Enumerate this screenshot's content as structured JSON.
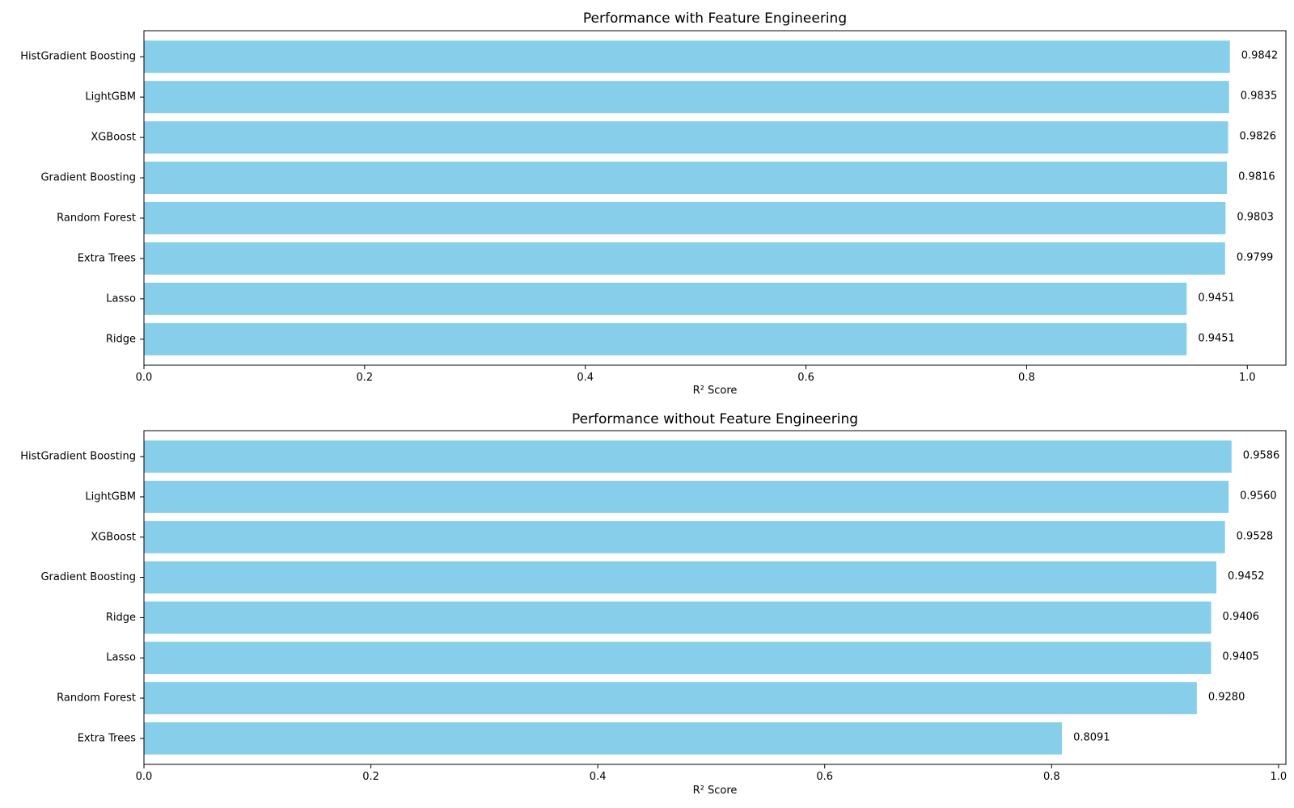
{
  "chart_data": [
    {
      "type": "bar",
      "orientation": "horizontal",
      "title": "Performance with Feature Engineering",
      "xlabel": "R² Score",
      "ylabel": "",
      "xlim": [
        0,
        1.035
      ],
      "xticks": [
        "0.0",
        "0.2",
        "0.4",
        "0.6",
        "0.8",
        "1.0"
      ],
      "xtick_values": [
        0,
        0.2,
        0.4,
        0.6,
        0.8,
        1.0
      ],
      "categories": [
        "HistGradient Boosting",
        "LightGBM",
        "XGBoost",
        "Gradient Boosting",
        "Random Forest",
        "Extra Trees",
        "Lasso",
        "Ridge"
      ],
      "values": [
        0.9842,
        0.9835,
        0.9826,
        0.9816,
        0.9803,
        0.9799,
        0.9451,
        0.9451
      ],
      "value_labels": [
        "0.9842",
        "0.9835",
        "0.9826",
        "0.9816",
        "0.9803",
        "0.9799",
        "0.9451",
        "0.9451"
      ],
      "grid": false,
      "bar_color": "#87ceeb"
    },
    {
      "type": "bar",
      "orientation": "horizontal",
      "title": "Performance without Feature Engineering",
      "xlabel": "R² Score",
      "ylabel": "",
      "xlim": [
        0,
        1.0065
      ],
      "xticks": [
        "0.0",
        "0.2",
        "0.4",
        "0.6",
        "0.8",
        "1.0"
      ],
      "xtick_values": [
        0,
        0.2,
        0.4,
        0.6,
        0.8,
        1.0
      ],
      "categories": [
        "HistGradient Boosting",
        "LightGBM",
        "XGBoost",
        "Gradient Boosting",
        "Ridge",
        "Lasso",
        "Random Forest",
        "Extra Trees"
      ],
      "values": [
        0.9586,
        0.956,
        0.9528,
        0.9452,
        0.9406,
        0.9405,
        0.928,
        0.8091
      ],
      "value_labels": [
        "0.9586",
        "0.9560",
        "0.9528",
        "0.9452",
        "0.9406",
        "0.9405",
        "0.9280",
        "0.8091"
      ],
      "grid": false,
      "bar_color": "#87ceeb"
    }
  ]
}
